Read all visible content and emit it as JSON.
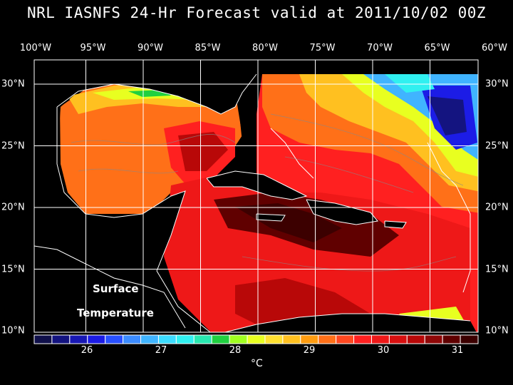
{
  "title": "NRL IASNFS  24-Hr Forecast valid at 2011/10/02 00Z",
  "annotation": {
    "line1": "Surface",
    "line2": "Temperature"
  },
  "colorbar": {
    "unit": "°C",
    "ticks": [
      "26",
      "27",
      "28",
      "29",
      "30",
      "31"
    ],
    "colors": [
      "#10104a",
      "#141480",
      "#1818b4",
      "#1c1ce6",
      "#2850ff",
      "#3c8cff",
      "#40b4ff",
      "#3cdcff",
      "#30f0f0",
      "#28e8b0",
      "#20d040",
      "#a0ff20",
      "#e8ff20",
      "#ffe030",
      "#ffc020",
      "#ff9c10",
      "#ff7018",
      "#ff4820",
      "#ff2020",
      "#ee1818",
      "#d81010",
      "#b80808",
      "#900808",
      "#600000",
      "#3c0000"
    ]
  },
  "map": {
    "lon_labels": [
      "100°W",
      "95°W",
      "90°W",
      "85°W",
      "80°W",
      "75°W",
      "70°W",
      "65°W",
      "60°W"
    ],
    "lat_labels": [
      "30°N",
      "25°N",
      "20°N",
      "15°N",
      "10°N"
    ]
  }
}
